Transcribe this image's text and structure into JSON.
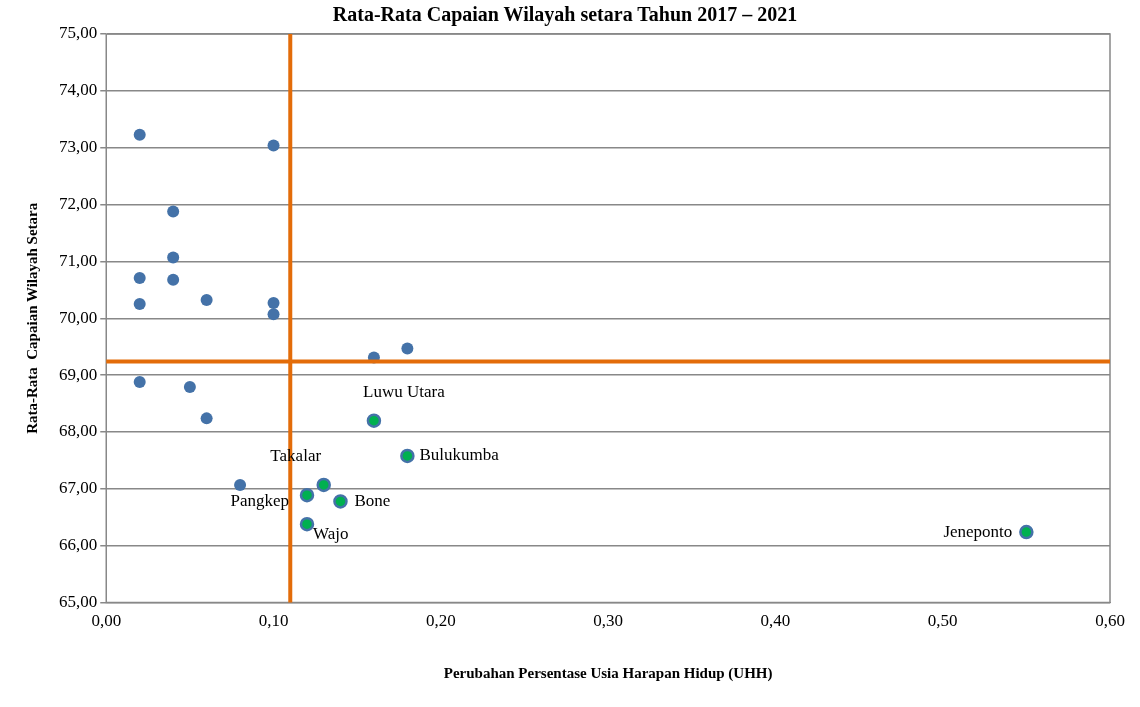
{
  "chart_data": {
    "type": "scatter",
    "title": "Rata-Rata Capaian Wilayah setara Tahun 2017 – 2021",
    "xlabel": "Perubahan Persentase Usia Harapan Hidup (UHH)",
    "ylabel": "Rata-Rata  Capaian Wilayah Setara",
    "series": [
      {
        "color": "#4472a8",
        "x": [
          0.02,
          0.1,
          0.04,
          0.04,
          0.02,
          0.04,
          0.06,
          0.02,
          0.1,
          0.1,
          0.16,
          0.18,
          0.02,
          0.05,
          0.06,
          0.08
        ],
        "values": [
          73.23,
          73.04,
          71.88,
          71.07,
          70.71,
          70.68,
          70.32,
          70.25,
          70.27,
          70.07,
          69.31,
          69.47,
          68.88,
          68.79,
          68.24,
          67.07
        ]
      },
      {
        "color": "#00b050",
        "x": [
          0.16,
          0.18,
          0.13,
          0.12,
          0.14,
          0.12,
          0.55
        ],
        "values": [
          68.2,
          67.58,
          67.07,
          66.89,
          66.78,
          66.38,
          66.24
        ]
      }
    ],
    "annotations": [
      {
        "text": "Luwu Utara",
        "x": 0.16,
        "y": 68.2
      },
      {
        "text": "Bulukumba",
        "x": 0.18,
        "y": 67.58
      },
      {
        "text": "Takalar",
        "x": 0.13,
        "y": 67.07
      },
      {
        "text": "Pangkep",
        "x": 0.12,
        "y": 66.89
      },
      {
        "text": "Bone",
        "x": 0.14,
        "y": 66.78
      },
      {
        "text": "Wajo",
        "x": 0.12,
        "y": 66.38
      },
      {
        "text": "Jeneponto",
        "x": 0.55,
        "y": 66.24
      }
    ],
    "ref_lines": [
      {
        "axis": "x",
        "value": 0.11,
        "color": "#e36c09"
      },
      {
        "axis": "y",
        "value": 69.24,
        "color": "#e36c09"
      }
    ],
    "xlim": [
      0,
      0.6
    ],
    "xticks": [
      {
        "value": 0,
        "label": "0,00"
      },
      {
        "value": 0.1,
        "label": "0,10"
      },
      {
        "value": 0.2,
        "label": "0,20"
      },
      {
        "value": 0.3,
        "label": "0,30"
      },
      {
        "value": 0.4,
        "label": "0,40"
      },
      {
        "value": 0.5,
        "label": "0,50"
      },
      {
        "value": 0.6,
        "label": "0,60"
      }
    ],
    "ylim": [
      65,
      75
    ],
    "yticks": [
      {
        "value": 65,
        "label": "65,00"
      },
      {
        "value": 66,
        "label": "66,00"
      },
      {
        "value": 67,
        "label": "67,00"
      },
      {
        "value": 68,
        "label": "68,00"
      },
      {
        "value": 69,
        "label": "69,00"
      },
      {
        "value": 70,
        "label": "70,00"
      },
      {
        "value": 71,
        "label": "71,00"
      },
      {
        "value": 72,
        "label": "72,00"
      },
      {
        "value": 73,
        "label": "73,00"
      },
      {
        "value": 74,
        "label": "74,00"
      },
      {
        "value": 75,
        "label": "75,00"
      }
    ],
    "grid": "y",
    "legend": false,
    "marker": "circle"
  }
}
